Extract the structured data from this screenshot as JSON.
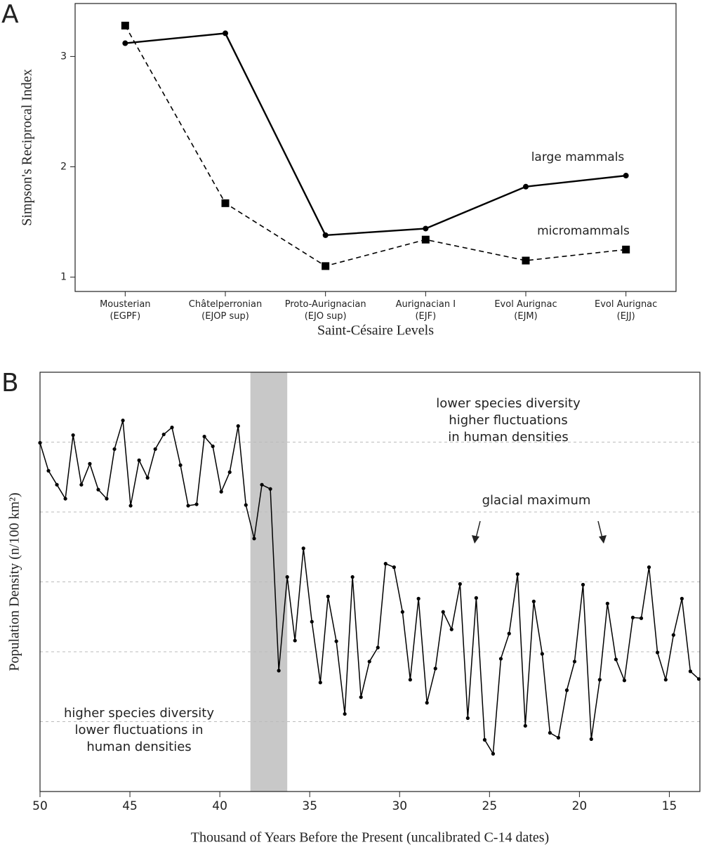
{
  "chart_data": [
    {
      "type": "line",
      "panel_label": "A",
      "ylabel": "Simpson's Reciprocal Index",
      "xlabel": "Saint-Césaire Levels",
      "categories": [
        "Mousterian\n(EGPF)",
        "Châtelperronian\n(EJOP sup)",
        "Proto-Aurignacian\n(EJO sup)",
        "Aurignacian I\n(EJF)",
        "Evol Aurignac\n(EJM)",
        "Evol Aurignac\n(EJJ)"
      ],
      "ylim": [
        0.87,
        3.48
      ],
      "yticks": [
        1,
        2,
        3
      ],
      "series": [
        {
          "name": "large mammals",
          "color": "#000000",
          "marker": "circle",
          "linestyle": "solid",
          "values": [
            3.12,
            3.21,
            1.38,
            1.44,
            1.82,
            1.92
          ]
        },
        {
          "name": "micromammals",
          "color": "#000000",
          "marker": "square",
          "linestyle": "dashed",
          "values": [
            3.28,
            1.67,
            1.1,
            1.34,
            1.15,
            1.25
          ]
        }
      ]
    },
    {
      "type": "line",
      "panel_label": "B",
      "ylabel": "Population Density (n/100 km²)",
      "xlabel": "Thousand of Years Before the Present (uncalibrated C-14 dates)",
      "xlim": [
        50,
        13.3
      ],
      "xticks": [
        50,
        45,
        40,
        35,
        30,
        25,
        20,
        15
      ],
      "ylim": [
        0,
        6
      ],
      "ygrid": [
        1,
        2,
        3,
        4,
        5
      ],
      "shaded_span": [
        38.3,
        36.25
      ],
      "shaded_color": "#c8c8c8",
      "color": "#000000",
      "annotations": [
        "lower species diversity\nhigher fluctuations\nin human densities",
        "glacial maximum",
        "higher species diversity\nlower fluctuations in\nhuman densities"
      ],
      "x": [
        50.0,
        49.53,
        49.06,
        48.59,
        48.16,
        47.7,
        47.23,
        46.76,
        46.29,
        45.86,
        45.39,
        44.96,
        44.49,
        44.02,
        43.59,
        43.12,
        42.66,
        42.19,
        41.76,
        41.29,
        40.86,
        40.39,
        39.92,
        39.45,
        38.98,
        38.55,
        38.09,
        37.66,
        37.19,
        36.72,
        36.25,
        35.82,
        35.35,
        34.88,
        34.41,
        33.98,
        33.52,
        33.05,
        32.62,
        32.15,
        31.68,
        31.21,
        30.78,
        30.31,
        29.84,
        29.41,
        28.95,
        28.48,
        28.01,
        27.58,
        27.11,
        26.64,
        26.21,
        25.74,
        25.27,
        24.8,
        24.37,
        23.91,
        23.44,
        23.01,
        22.54,
        22.07,
        21.64,
        21.17,
        20.7,
        20.27,
        19.8,
        19.34,
        18.87,
        18.44,
        17.97,
        17.5,
        17.03,
        16.56,
        16.13,
        15.66,
        15.2,
        14.77,
        14.3,
        13.83,
        13.36
      ],
      "values": [
        4.99,
        4.59,
        4.39,
        4.19,
        5.1,
        4.39,
        4.69,
        4.32,
        4.19,
        4.9,
        5.31,
        4.09,
        4.74,
        4.49,
        4.9,
        5.11,
        5.21,
        4.67,
        4.09,
        4.11,
        5.08,
        4.94,
        4.29,
        4.57,
        5.23,
        4.1,
        3.62,
        4.39,
        4.33,
        1.73,
        3.07,
        2.16,
        3.48,
        2.43,
        1.56,
        2.79,
        2.15,
        1.11,
        3.07,
        1.35,
        1.86,
        2.06,
        3.26,
        3.21,
        2.57,
        1.6,
        2.76,
        1.27,
        1.76,
        2.57,
        2.32,
        2.97,
        1.05,
        2.77,
        0.74,
        0.54,
        1.9,
        2.26,
        3.11,
        0.94,
        2.72,
        1.97,
        0.84,
        0.77,
        1.45,
        1.86,
        2.96,
        0.75,
        1.6,
        2.69,
        1.89,
        1.59,
        2.49,
        2.48,
        3.21,
        1.99,
        1.6,
        2.24,
        2.76,
        1.72,
        1.61
      ]
    }
  ]
}
